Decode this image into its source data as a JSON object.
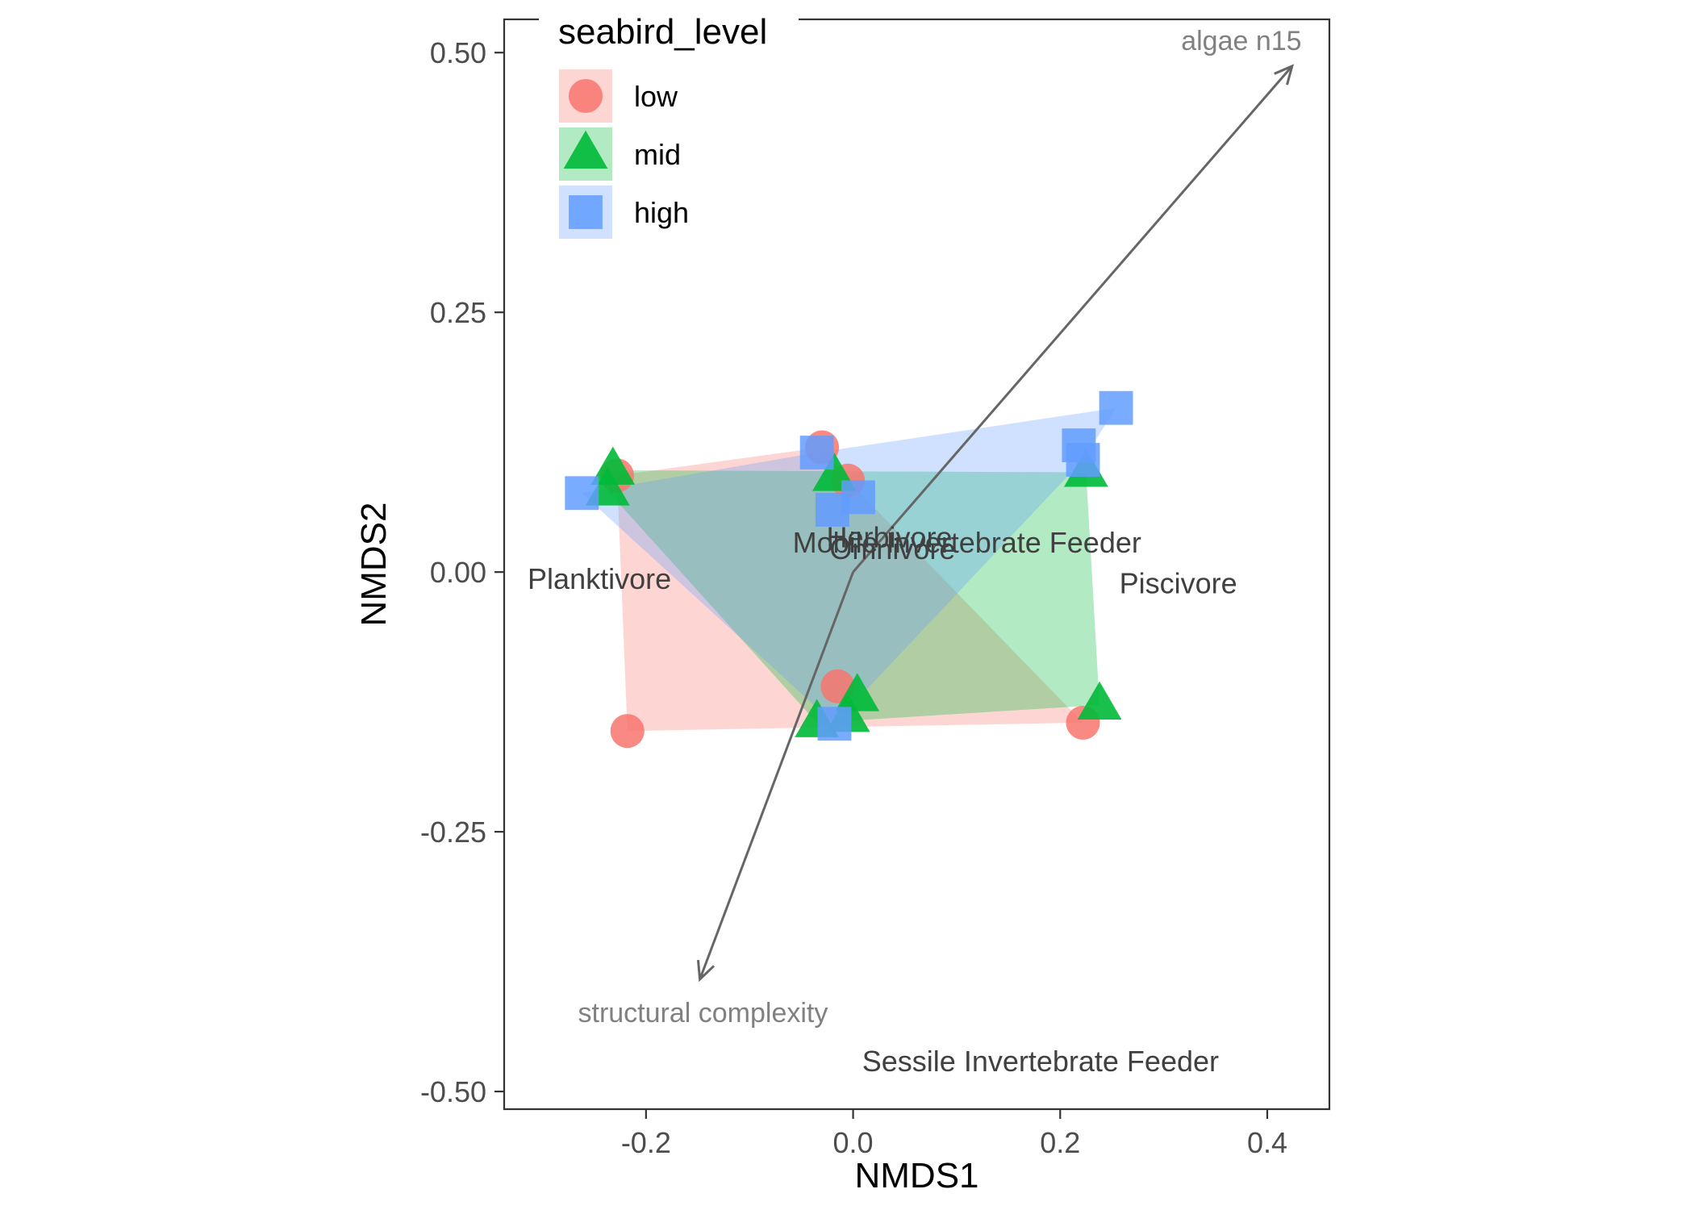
{
  "chart_data": {
    "type": "scatter",
    "xlabel": "NMDS1",
    "ylabel": "NMDS2",
    "xlim": [
      -0.337,
      0.46
    ],
    "ylim": [
      -0.517,
      0.532
    ],
    "x_ticks": [
      -0.2,
      0.0,
      0.2,
      0.4
    ],
    "x_tick_labels": [
      "-0.2",
      "0.0",
      "0.2",
      "0.4"
    ],
    "y_ticks": [
      0.5,
      0.25,
      0.0,
      -0.25,
      -0.5
    ],
    "y_tick_labels": [
      "0.50",
      "0.25",
      "0.00",
      "-0.25",
      "-0.50"
    ],
    "grid": false,
    "legend": {
      "title": "seabird_level",
      "placement": "top-left",
      "entries": [
        {
          "label": "low",
          "shape": "circle",
          "color": "#F8766D"
        },
        {
          "label": "mid",
          "shape": "triangle",
          "color": "#00BA38"
        },
        {
          "label": "high",
          "shape": "square",
          "color": "#619CFF"
        }
      ]
    },
    "series": [
      {
        "name": "low",
        "shape": "circle",
        "color": "#F8766D",
        "points": [
          {
            "x": -0.228,
            "y": 0.093
          },
          {
            "x": -0.218,
            "y": -0.153
          },
          {
            "x": -0.03,
            "y": 0.12
          },
          {
            "x": -0.005,
            "y": 0.088
          },
          {
            "x": -0.015,
            "y": -0.11
          },
          {
            "x": 0.222,
            "y": -0.145
          }
        ],
        "hull": [
          [
            -0.228,
            0.093
          ],
          [
            -0.03,
            0.12
          ],
          [
            -0.005,
            0.088
          ],
          [
            0.222,
            -0.145
          ],
          [
            -0.218,
            -0.153
          ]
        ]
      },
      {
        "name": "mid",
        "shape": "triangle",
        "color": "#00BA38",
        "points": [
          {
            "x": -0.232,
            "y": 0.098
          },
          {
            "x": -0.237,
            "y": 0.078
          },
          {
            "x": -0.018,
            "y": 0.092
          },
          {
            "x": 0.004,
            "y": -0.12
          },
          {
            "x": -0.005,
            "y": -0.14
          },
          {
            "x": -0.035,
            "y": -0.145
          },
          {
            "x": 0.225,
            "y": 0.096
          },
          {
            "x": 0.238,
            "y": -0.128
          }
        ],
        "hull": [
          [
            -0.232,
            0.098
          ],
          [
            0.225,
            0.096
          ],
          [
            0.238,
            -0.128
          ],
          [
            -0.035,
            -0.145
          ],
          [
            -0.237,
            0.078
          ]
        ]
      },
      {
        "name": "high",
        "shape": "square",
        "color": "#619CFF",
        "points": [
          {
            "x": -0.262,
            "y": 0.076
          },
          {
            "x": -0.035,
            "y": 0.115
          },
          {
            "x": 0.005,
            "y": 0.072
          },
          {
            "x": -0.02,
            "y": 0.06
          },
          {
            "x": 0.218,
            "y": 0.122
          },
          {
            "x": 0.222,
            "y": 0.108
          },
          {
            "x": 0.254,
            "y": 0.158
          },
          {
            "x": -0.018,
            "y": -0.146
          }
        ],
        "hull": [
          [
            -0.262,
            0.076
          ],
          [
            -0.035,
            0.115
          ],
          [
            0.254,
            0.158
          ],
          [
            0.222,
            0.108
          ],
          [
            -0.018,
            -0.146
          ]
        ]
      }
    ],
    "group_labels": [
      {
        "text": "Planktivore",
        "x": -0.245,
        "y": -0.007
      },
      {
        "text": "Herbivore",
        "x": 0.035,
        "y": 0.033
      },
      {
        "text": "Mobile Invertebrate Feeder",
        "x": 0.11,
        "y": 0.028
      },
      {
        "text": "Omnivore",
        "x": 0.038,
        "y": 0.022
      },
      {
        "text": "Piscivore",
        "x": 0.314,
        "y": -0.011
      },
      {
        "text": "Sessile Invertebrate Feeder",
        "x": 0.181,
        "y": -0.471
      }
    ],
    "vectors": [
      {
        "label": "algae n15",
        "x": 0.424,
        "y": 0.487,
        "label_x": 0.375,
        "label_y": 0.512
      },
      {
        "label": "structural complexity",
        "x": -0.148,
        "y": -0.392,
        "label_x": -0.145,
        "label_y": -0.424
      }
    ]
  }
}
